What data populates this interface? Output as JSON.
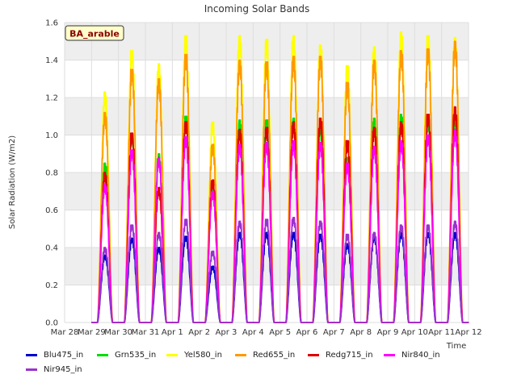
{
  "chart_data": {
    "type": "line",
    "title": "Incoming Solar Bands",
    "xlabel": "Time",
    "ylabel": "Solar Radiation (W/m2)",
    "badge": "BA_arable",
    "x_ticks": [
      "Mar 28",
      "Mar 29",
      "Mar 30",
      "Mar 31",
      "Apr 1",
      "Apr 2",
      "Apr 3",
      "Apr 4",
      "Apr 5",
      "Apr 6",
      "Apr 7",
      "Apr 8",
      "Apr 9",
      "Apr 10",
      "Apr 11",
      "Apr 12"
    ],
    "y_ticks": [
      "0.0",
      "0.2",
      "0.4",
      "0.6",
      "0.8",
      "1.0",
      "1.2",
      "1.4",
      "1.6"
    ],
    "xlim": [
      0,
      15
    ],
    "ylim": [
      0,
      1.6
    ],
    "grid": true,
    "legend_position": "bottom",
    "days": [
      {
        "date": "Mar 29",
        "Blu475_in": 0.36,
        "Grn535_in": 0.85,
        "Yel580_in": 1.23,
        "Red655_in": 1.12,
        "Redg715_in": 0.8,
        "Nir840_in": 0.74,
        "Nir945_in": 0.4
      },
      {
        "date": "Mar 30",
        "Blu475_in": 0.45,
        "Grn535_in": 1.0,
        "Yel580_in": 1.45,
        "Red655_in": 1.35,
        "Redg715_in": 1.01,
        "Nir840_in": 0.92,
        "Nir945_in": 0.52
      },
      {
        "date": "Mar 31",
        "Blu475_in": 0.4,
        "Grn535_in": 0.9,
        "Yel580_in": 1.38,
        "Red655_in": 1.3,
        "Redg715_in": 0.72,
        "Nir840_in": 0.88,
        "Nir945_in": 0.48
      },
      {
        "date": "Apr 1",
        "Blu475_in": 0.46,
        "Grn535_in": 1.1,
        "Yel580_in": 1.53,
        "Red655_in": 1.43,
        "Redg715_in": 1.07,
        "Nir840_in": 0.99,
        "Nir945_in": 0.55
      },
      {
        "date": "Apr 2",
        "Blu475_in": 0.3,
        "Grn535_in": 0.72,
        "Yel580_in": 1.07,
        "Red655_in": 0.95,
        "Redg715_in": 0.76,
        "Nir840_in": 0.7,
        "Nir945_in": 0.38
      },
      {
        "date": "Apr 3",
        "Blu475_in": 0.48,
        "Grn535_in": 1.08,
        "Yel580_in": 1.53,
        "Red655_in": 1.4,
        "Redg715_in": 1.03,
        "Nir840_in": 0.95,
        "Nir945_in": 0.54
      },
      {
        "date": "Apr 4",
        "Blu475_in": 0.48,
        "Grn535_in": 1.08,
        "Yel580_in": 1.51,
        "Red655_in": 1.39,
        "Redg715_in": 1.04,
        "Nir840_in": 0.96,
        "Nir945_in": 0.55
      },
      {
        "date": "Apr 5",
        "Blu475_in": 0.48,
        "Grn535_in": 1.09,
        "Yel580_in": 1.53,
        "Red655_in": 1.42,
        "Redg715_in": 1.07,
        "Nir840_in": 0.97,
        "Nir945_in": 0.56
      },
      {
        "date": "Apr 6",
        "Blu475_in": 0.47,
        "Grn535_in": 1.05,
        "Yel580_in": 1.48,
        "Red655_in": 1.42,
        "Redg715_in": 1.09,
        "Nir840_in": 0.96,
        "Nir945_in": 0.54
      },
      {
        "date": "Apr 7",
        "Blu475_in": 0.42,
        "Grn535_in": 0.88,
        "Yel580_in": 1.37,
        "Red655_in": 1.28,
        "Redg715_in": 0.97,
        "Nir840_in": 0.85,
        "Nir945_in": 0.47
      },
      {
        "date": "Apr 8",
        "Blu475_in": 0.46,
        "Grn535_in": 1.09,
        "Yel580_in": 1.47,
        "Red655_in": 1.4,
        "Redg715_in": 1.04,
        "Nir840_in": 0.94,
        "Nir945_in": 0.48
      },
      {
        "date": "Apr 9",
        "Blu475_in": 0.48,
        "Grn535_in": 1.11,
        "Yel580_in": 1.55,
        "Red655_in": 1.45,
        "Redg715_in": 1.07,
        "Nir840_in": 0.97,
        "Nir945_in": 0.52
      },
      {
        "date": "Apr 10",
        "Blu475_in": 0.48,
        "Grn535_in": 1.08,
        "Yel580_in": 1.53,
        "Red655_in": 1.46,
        "Redg715_in": 1.11,
        "Nir840_in": 1.0,
        "Nir945_in": 0.52
      },
      {
        "date": "Apr 11",
        "Blu475_in": 0.48,
        "Grn535_in": 1.1,
        "Yel580_in": 1.52,
        "Red655_in": 1.5,
        "Redg715_in": 1.15,
        "Nir840_in": 1.03,
        "Nir945_in": 0.54
      }
    ],
    "series": [
      {
        "name": "Blu475_in",
        "color": "#0000cc"
      },
      {
        "name": "Grn535_in",
        "color": "#00dd00"
      },
      {
        "name": "Yel580_in",
        "color": "#ffff00"
      },
      {
        "name": "Red655_in",
        "color": "#ff9900"
      },
      {
        "name": "Redg715_in",
        "color": "#dd0000"
      },
      {
        "name": "Nir840_in",
        "color": "#ff00ff"
      },
      {
        "name": "Nir945_in",
        "color": "#9933cc"
      }
    ]
  },
  "colors": {
    "plot_background": "#ffffff",
    "band_background": "#eeeeee",
    "grid": "#dddddd",
    "badge_fill": "#ffffcc",
    "badge_text": "#8b0000"
  }
}
